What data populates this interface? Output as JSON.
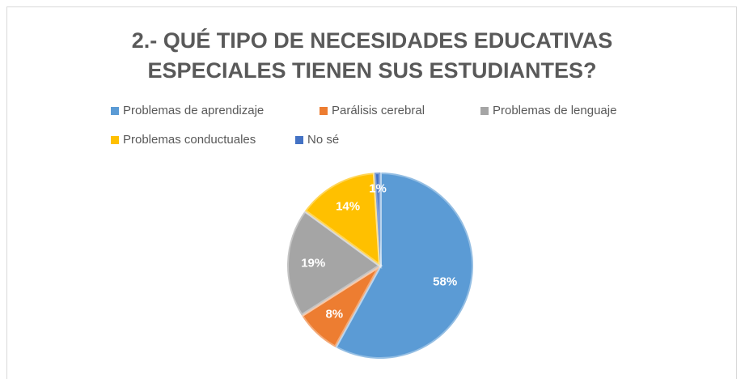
{
  "chart_data": {
    "type": "pie",
    "title": "2.- QUÉ TIPO DE NECESIDADES EDUCATIVAS ESPECIALES TIENEN SUS ESTUDIANTES?",
    "categories": [
      "Problemas de aprendizaje",
      "Parálisis cerebral",
      "Problemas de lenguaje",
      "Problemas conductuales",
      "No sé"
    ],
    "values": [
      58,
      8,
      19,
      14,
      1
    ],
    "value_labels": [
      "58%",
      "8%",
      "19%",
      "14%",
      "1%"
    ],
    "colors": [
      "#5b9bd5",
      "#ed7d31",
      "#a5a5a5",
      "#ffc000",
      "#4472c4"
    ],
    "legend": "top"
  }
}
